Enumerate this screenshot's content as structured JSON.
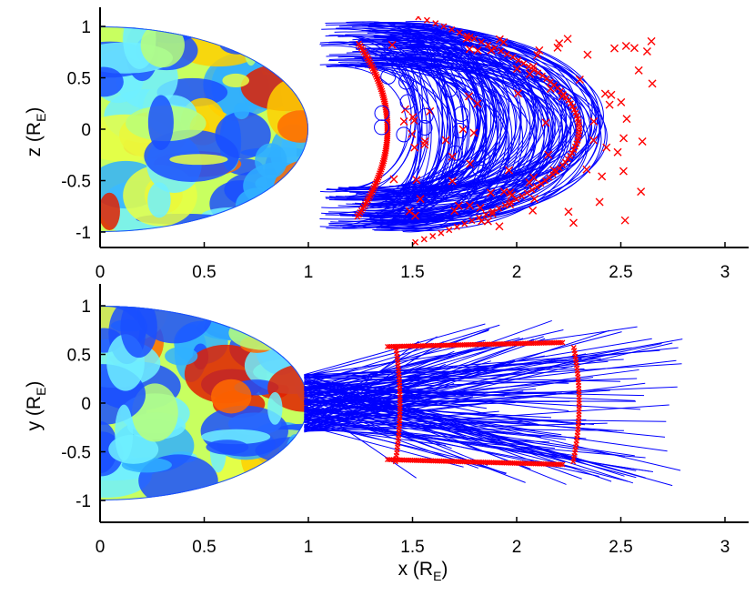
{
  "chart_data": [
    {
      "type": "line",
      "panel": "top",
      "xlim": [
        0,
        3.1
      ],
      "ylim": [
        -1.2,
        1.2
      ],
      "x_ticks": [
        "0",
        "0.5",
        "1",
        "1.5",
        "2",
        "2.5",
        "3"
      ],
      "y_ticks": [
        "1",
        "0.5",
        "0",
        "-0.5",
        "-1"
      ],
      "ylabel": {
        "main": "z (R",
        "sub": "E",
        "close": ")"
      },
      "xlabel": "",
      "grid": false,
      "earth_cross_section": {
        "radius": 1,
        "colormap": "jet"
      },
      "series": [
        {
          "marker_color": "#ff0000",
          "arc_x_at_equator": 1.38,
          "arc_z_extent": [
            -0.85,
            0.85
          ]
        },
        {
          "marker_color": "#ff0000",
          "arc_x_at_equator": 2.3,
          "arc_z_extent": [
            -1.1,
            1.1
          ]
        },
        {
          "line_color": "#0000ff",
          "x_range": [
            1.15,
            2.8
          ],
          "z_range": [
            -1.0,
            1.0
          ]
        }
      ]
    },
    {
      "type": "line",
      "panel": "bottom",
      "xlim": [
        0,
        3.1
      ],
      "ylim": [
        -1.2,
        1.2
      ],
      "x_ticks": [
        "0",
        "0.5",
        "1",
        "1.5",
        "2",
        "2.5",
        "3"
      ],
      "y_ticks": [
        "1",
        "0.5",
        "0",
        "-0.5",
        "-1"
      ],
      "ylabel": {
        "main": "y (R",
        "sub": "E",
        "close": ")"
      },
      "xlabel": {
        "main": "x (R",
        "sub": "E",
        "close": ")"
      },
      "grid": false,
      "earth_cross_section": {
        "radius": 1,
        "colormap": "jet"
      },
      "series": [
        {
          "marker_color": "#ff0000",
          "box_x": [
            1.38,
            2.3
          ],
          "box_y": [
            -0.6,
            0.6
          ]
        },
        {
          "line_color": "#0000ff",
          "x_range": [
            0.95,
            2.8
          ],
          "y_range": [
            -0.85,
            0.9
          ]
        }
      ]
    }
  ],
  "colors": {
    "field_lines": "#0000ff",
    "markers": "#ff0000",
    "earth_palette": [
      "#1a4fff",
      "#30b0ff",
      "#70f0ff",
      "#b8ff7a",
      "#e8ff44",
      "#ffd000",
      "#ff6a00",
      "#e02000"
    ]
  }
}
